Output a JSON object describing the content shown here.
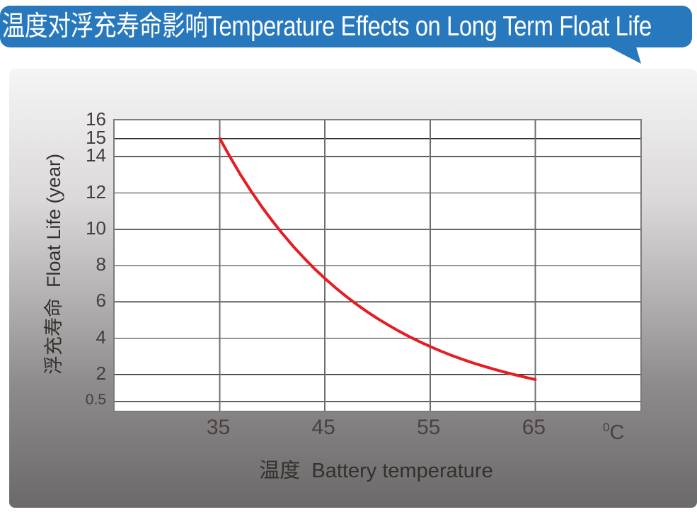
{
  "banner": {
    "title": "温度对浮充寿命影响Temperature Effects on Long Term Float Life"
  },
  "colors": {
    "banner_blue": "#2878be",
    "banner_text": "#ffffff",
    "curve_red": "#e31e24",
    "grid_horizontal": "#2c2a2a",
    "grid_vertical": "#6f6d6d",
    "plot_border": "#7d7b7b",
    "tick_text": "#453e3d"
  },
  "chart_data": {
    "type": "line",
    "title": "温度对浮充寿命影响 Temperature Effects on Long Term Float Life",
    "xlabel": "温度  Battery temperature",
    "ylabel": "浮充寿命  Float Life (year)",
    "x_unit": {
      "sup": "0",
      "base": "C"
    },
    "xlim": [
      25,
      75
    ],
    "ylim": [
      0,
      16
    ],
    "x_ticks": [
      35,
      45,
      55,
      65
    ],
    "y_ticks": [
      16,
      15,
      14,
      12,
      10,
      8,
      6,
      4,
      2,
      0.5
    ],
    "grid": true,
    "legend": false,
    "series": [
      {
        "name": "float-life-vs-temperature",
        "color": "#e31e24",
        "x": [
          35,
          36,
          37,
          38,
          39,
          40,
          41,
          42,
          43,
          44,
          45,
          46,
          47,
          48,
          49,
          50,
          51,
          52,
          53,
          54,
          55,
          56,
          57,
          58,
          59,
          60,
          61,
          62,
          63,
          64,
          65
        ],
        "y": [
          15.0,
          13.96,
          12.98,
          12.08,
          11.24,
          10.46,
          9.73,
          9.05,
          8.42,
          7.83,
          7.29,
          6.78,
          6.31,
          5.87,
          5.46,
          5.08,
          4.73,
          4.4,
          4.09,
          3.81,
          3.54,
          3.29,
          3.06,
          2.85,
          2.65,
          2.47,
          2.3,
          2.14,
          1.99,
          1.85,
          1.72
        ]
      }
    ]
  }
}
